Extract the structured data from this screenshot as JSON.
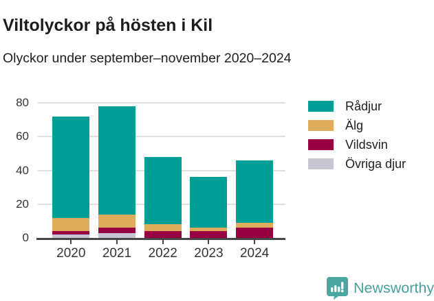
{
  "title": "Viltolyckor på hösten i Kil",
  "subtitle": "Olyckor under september–november 2020–2024",
  "chart_data": {
    "type": "bar",
    "stacked": true,
    "title": "Viltolyckor på hösten i Kil",
    "subtitle": "Olyckor under september–november 2020–2024",
    "categories": [
      "2020",
      "2021",
      "2022",
      "2023",
      "2024"
    ],
    "series": [
      {
        "name": "Rådjur",
        "color": "#009e97",
        "values": [
          60,
          64,
          40,
          30,
          37
        ]
      },
      {
        "name": "Älg",
        "color": "#ddad5c",
        "values": [
          8,
          8,
          4,
          2,
          3
        ]
      },
      {
        "name": "Vildsvin",
        "color": "#980141",
        "values": [
          2,
          3,
          4,
          4,
          6
        ]
      },
      {
        "name": "Övriga djur",
        "color": "#c7c5d2",
        "values": [
          2,
          3,
          0,
          0,
          0
        ]
      }
    ],
    "stack_totals": [
      72,
      78,
      48,
      36,
      46
    ],
    "xlabel": "",
    "ylabel": "",
    "ylim": [
      0,
      80
    ],
    "yticks": [
      0,
      20,
      40,
      60,
      80
    ],
    "grid": true,
    "legend_position": "right"
  },
  "footer": {
    "brand": "Newsworthy",
    "brand_color": "#4a9e9c",
    "logo_icon": "bar-chart-speech-bubble-icon"
  },
  "colors": {
    "background": "#ffffff",
    "axis": "#454545",
    "gridline": "#dedede",
    "text": "#1d1d1b",
    "tick_text": "#333333"
  }
}
